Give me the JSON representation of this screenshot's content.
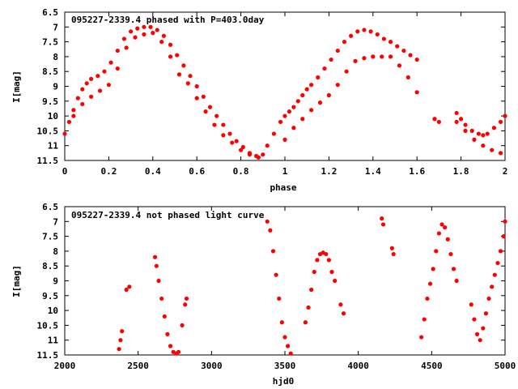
{
  "chart_data": [
    {
      "type": "scatter",
      "title": "095227-2339.4 phased with P=403.0day",
      "xlabel": "phase",
      "ylabel": "I[mag]",
      "xlim": [
        0,
        2
      ],
      "ylim": [
        11.5,
        6.5
      ],
      "y_inverted": true,
      "xticks": [
        "0",
        "0.2",
        "0.4",
        "0.6",
        "0.8",
        "1",
        "1.2",
        "1.4",
        "1.6",
        "1.8",
        "2"
      ],
      "yticks": [
        "6.5",
        "7",
        "7.5",
        "8",
        "8.5",
        "9",
        "9.5",
        "10",
        "10.5",
        "11",
        "11.5"
      ],
      "marker_color": "#ff0000",
      "series": [
        {
          "x": [
            0.0,
            0.02,
            0.04,
            0.06,
            0.08,
            0.1,
            0.12,
            0.15,
            0.18,
            0.21,
            0.24,
            0.27,
            0.3,
            0.33,
            0.36,
            0.39,
            0.42,
            0.45,
            0.48,
            0.51,
            0.54,
            0.57,
            0.6,
            0.63,
            0.66,
            0.69,
            0.72,
            0.75,
            0.78,
            0.81,
            0.84,
            0.87,
            0.9,
            0.92,
            0.95,
            0.98,
            1.0,
            1.02,
            1.04,
            1.06,
            1.08,
            1.1,
            1.12,
            1.15,
            1.18,
            1.21,
            1.24,
            1.27,
            1.3,
            1.33,
            1.36,
            1.39,
            1.42,
            1.45,
            1.48,
            1.51,
            1.54,
            1.57,
            1.6,
            1.68,
            1.7,
            1.78,
            1.8,
            1.82,
            1.85,
            1.88,
            1.9,
            1.92,
            1.95,
            1.98,
            2.0
          ],
          "y": [
            10.6,
            10.2,
            9.8,
            9.4,
            9.1,
            8.9,
            8.75,
            8.65,
            8.5,
            8.2,
            7.8,
            7.4,
            7.15,
            7.05,
            7.0,
            7.0,
            7.1,
            7.3,
            7.6,
            7.95,
            8.3,
            8.65,
            9.0,
            9.35,
            9.7,
            10.0,
            10.3,
            10.6,
            10.85,
            11.05,
            11.25,
            11.35,
            11.3,
            11.0,
            10.6,
            10.2,
            10.0,
            9.85,
            9.7,
            9.5,
            9.3,
            9.1,
            8.95,
            8.7,
            8.4,
            8.1,
            7.8,
            7.5,
            7.3,
            7.15,
            7.1,
            7.15,
            7.25,
            7.4,
            7.5,
            7.65,
            7.8,
            7.95,
            8.1,
            10.1,
            10.2,
            9.9,
            10.1,
            10.3,
            10.5,
            10.6,
            10.65,
            10.6,
            10.4,
            10.2,
            10.0
          ]
        },
        {
          "x": [
            0.04,
            0.08,
            0.12,
            0.16,
            0.2,
            0.24,
            0.28,
            0.32,
            0.36,
            0.4,
            0.44,
            0.48,
            0.52,
            0.56,
            0.6,
            0.64,
            0.68,
            0.72,
            0.76,
            0.8,
            0.84,
            0.88,
            1.0,
            1.04,
            1.08,
            1.12,
            1.16,
            1.2,
            1.24,
            1.28,
            1.32,
            1.36,
            1.4,
            1.44,
            1.48,
            1.52,
            1.56,
            1.6,
            1.78,
            1.82,
            1.86,
            1.9,
            1.94,
            1.98
          ],
          "y": [
            10.0,
            9.6,
            9.35,
            9.15,
            8.95,
            8.4,
            7.7,
            7.35,
            7.25,
            7.2,
            7.5,
            8.0,
            8.6,
            8.9,
            9.4,
            9.85,
            10.3,
            10.65,
            10.9,
            11.15,
            11.3,
            11.4,
            10.8,
            10.4,
            10.1,
            9.8,
            9.55,
            9.3,
            8.95,
            8.5,
            8.15,
            8.05,
            8.0,
            8.0,
            8.0,
            8.3,
            8.7,
            9.2,
            10.2,
            10.5,
            10.8,
            11.0,
            11.15,
            11.25
          ]
        }
      ]
    },
    {
      "type": "scatter",
      "title": "095227-2339.4 not phased light curve",
      "xlabel": "hjd0",
      "ylabel": "I[mag]",
      "xlim": [
        2000,
        5000
      ],
      "ylim": [
        11.5,
        6.5
      ],
      "y_inverted": true,
      "xticks": [
        "2000",
        "2500",
        "3000",
        "3500",
        "4000",
        "4500",
        "5000"
      ],
      "yticks": [
        "6.5",
        "7",
        "7.5",
        "8",
        "8.5",
        "9",
        "9.5",
        "10",
        "10.5",
        "11",
        "11.5"
      ],
      "marker_color": "#ff0000",
      "series": [
        {
          "x": [
            2370,
            2380,
            2390,
            2420,
            2440,
            2615,
            2625,
            2640,
            2660,
            2680,
            2700,
            2720,
            2740,
            2760,
            2775,
            2800,
            2820,
            2830,
            3380,
            3400,
            3420,
            3440,
            3460,
            3480,
            3500,
            3520,
            3540,
            3640,
            3660,
            3680,
            3700,
            3720,
            3740,
            3760,
            3780,
            3800,
            3820,
            3840,
            3880,
            3900,
            4160,
            4170,
            4230,
            4240,
            4430,
            4450,
            4470,
            4490,
            4510,
            4530,
            4550,
            4570,
            4590,
            4610,
            4630,
            4650,
            4670,
            4770,
            4790,
            4810,
            4830,
            4850,
            4870,
            4890,
            4910,
            4930,
            4950,
            4970,
            4990,
            5000
          ],
          "y": [
            11.3,
            11.0,
            10.7,
            9.3,
            9.2,
            8.2,
            8.5,
            9.0,
            9.6,
            10.2,
            10.8,
            11.2,
            11.4,
            11.45,
            11.4,
            10.5,
            9.8,
            9.6,
            7.0,
            7.3,
            8.0,
            8.8,
            9.6,
            10.4,
            10.9,
            11.2,
            11.45,
            10.4,
            9.9,
            9.3,
            8.7,
            8.3,
            8.1,
            8.05,
            8.1,
            8.3,
            8.7,
            9.0,
            9.8,
            10.1,
            6.9,
            7.1,
            7.9,
            8.1,
            10.9,
            10.3,
            9.6,
            9.1,
            8.6,
            8.0,
            7.4,
            7.1,
            7.2,
            7.6,
            8.1,
            8.6,
            9.0,
            9.8,
            10.3,
            10.8,
            11.0,
            10.6,
            10.1,
            9.6,
            9.2,
            8.8,
            8.4,
            8.0,
            7.5,
            7.0
          ]
        }
      ]
    }
  ]
}
